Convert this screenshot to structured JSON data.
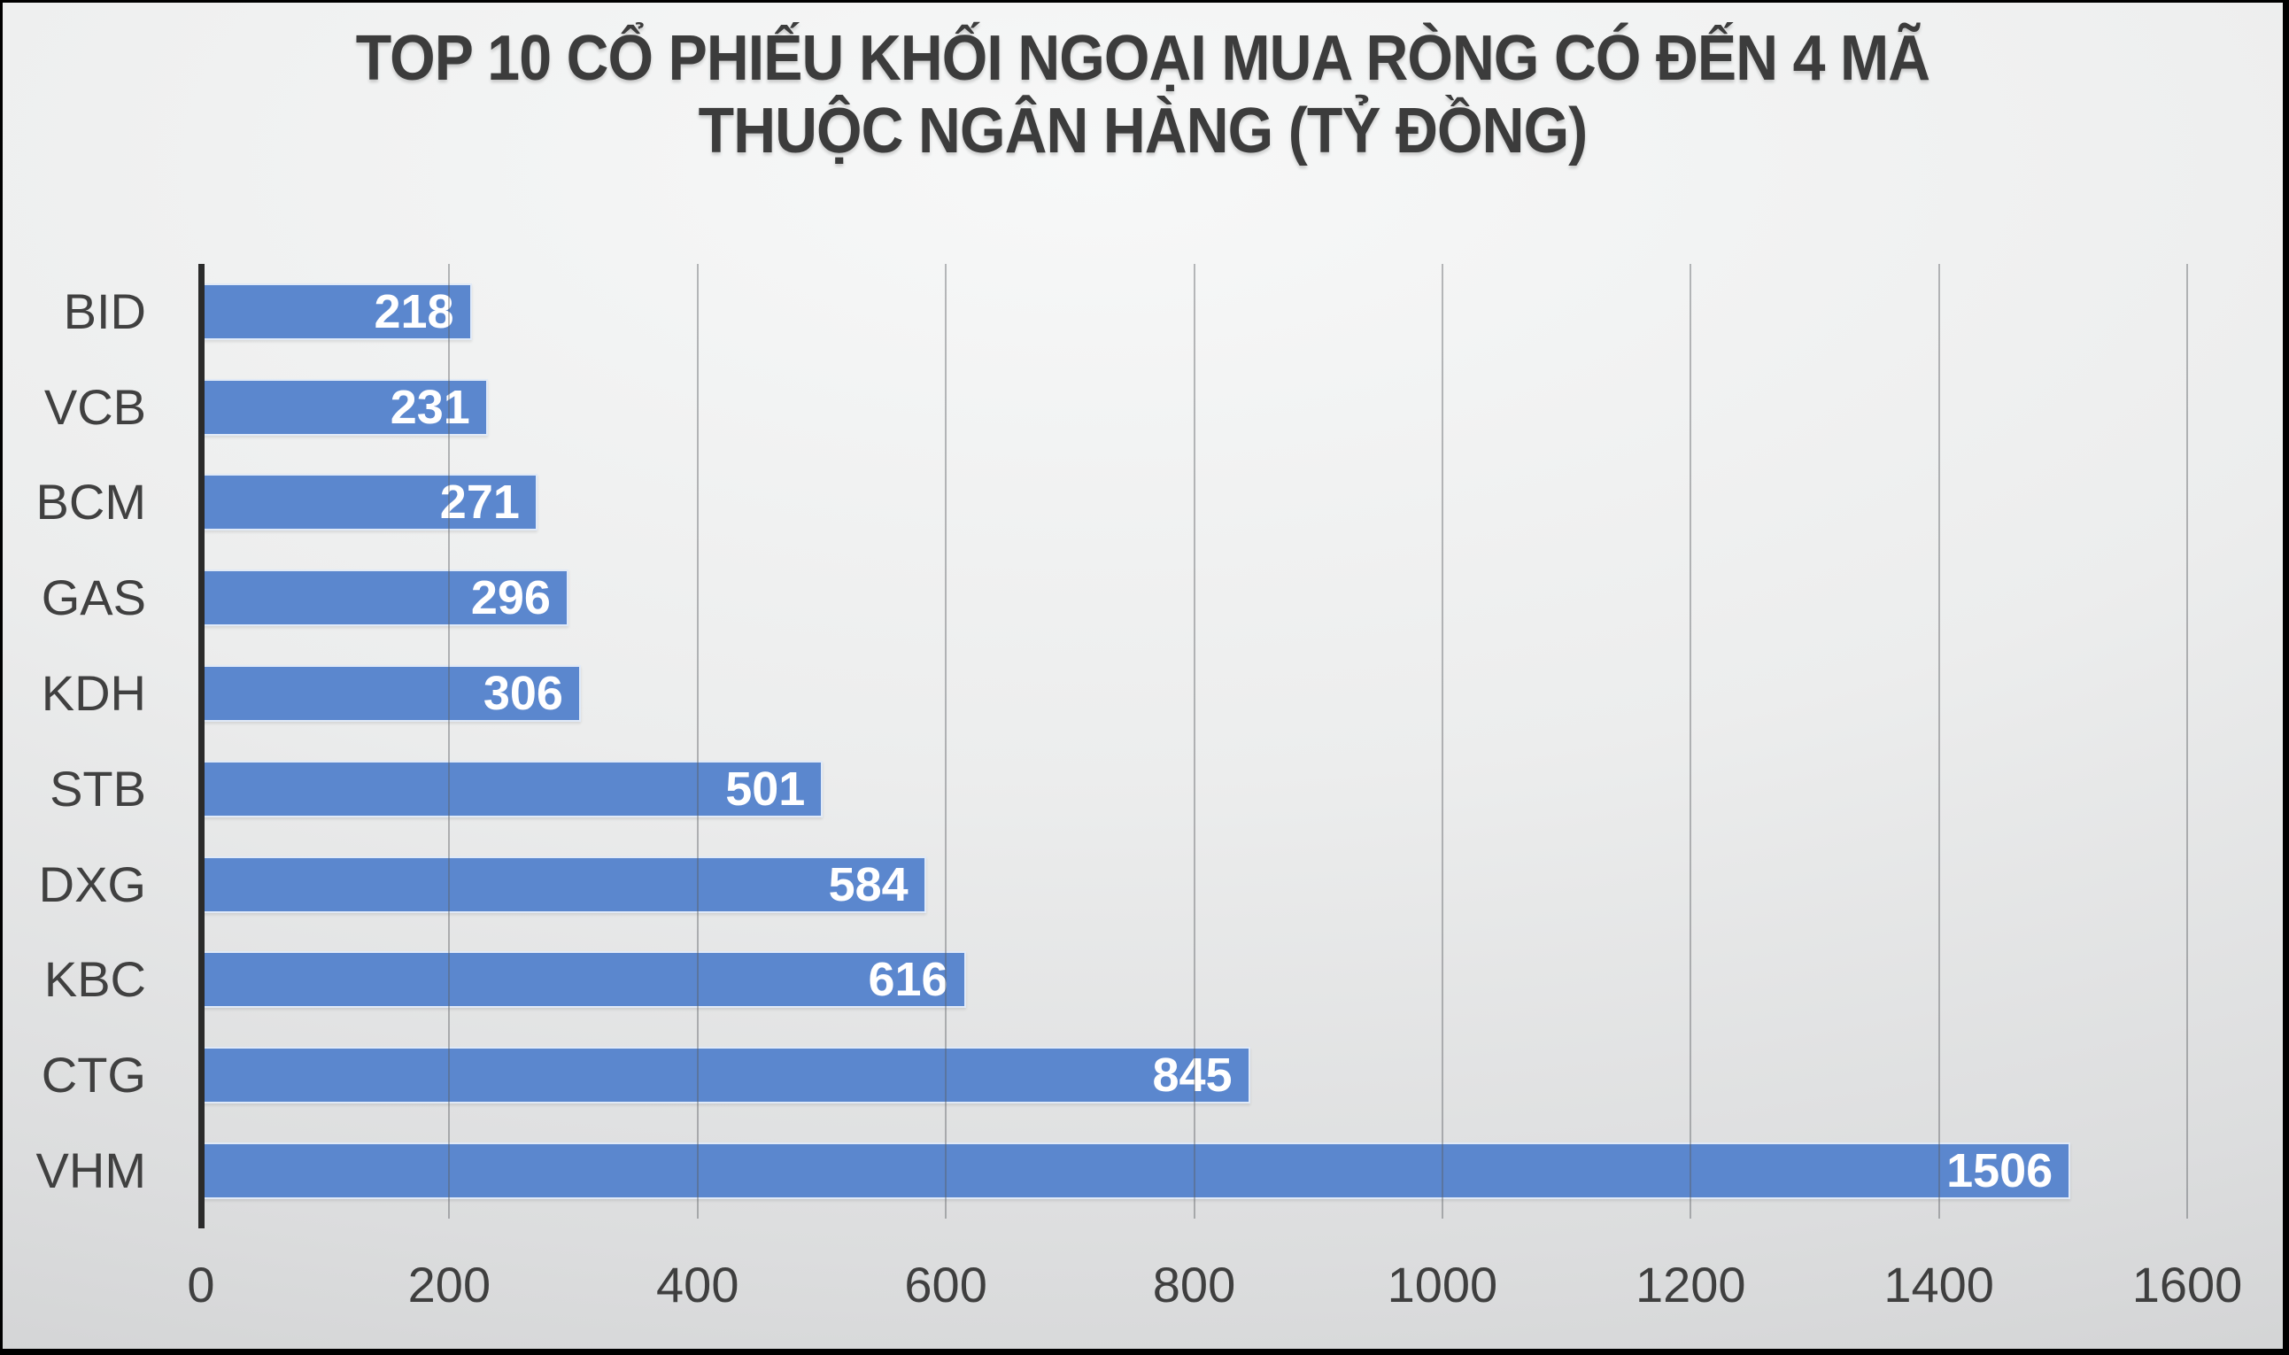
{
  "title": {
    "line1": "TOP 10 CỔ PHIẾU KHỐI NGOẠI MUA RÒNG CÓ ĐẾN 4 MÃ",
    "line2": "THUỘC NGÂN HÀNG (TỶ ĐỒNG)"
  },
  "chart_data": {
    "type": "bar",
    "orientation": "horizontal",
    "title": "TOP 10 CỔ PHIẾU KHỐI NGOẠI MUA RÒNG CÓ ĐẾN 4 MÃ THUỘC NGÂN HÀNG (TỶ ĐỒNG)",
    "categories": [
      "BID",
      "VCB",
      "BCM",
      "GAS",
      "KDH",
      "STB",
      "DXG",
      "KBC",
      "CTG",
      "VHM"
    ],
    "values": [
      218,
      231,
      271,
      296,
      306,
      501,
      584,
      616,
      845,
      1506
    ],
    "xlabel": "",
    "ylabel": "",
    "xlim": [
      0,
      1600
    ],
    "x_ticks": [
      0,
      200,
      400,
      600,
      800,
      1000,
      1200,
      1400,
      1600
    ],
    "grid": true,
    "legend": "none",
    "value_label_position": "inside-end",
    "bar_color": "#5B87CE",
    "bar_border_color": "#F0F5FC",
    "value_label_color": "#FFFFFF",
    "axis_line_color": "#2B2B2B",
    "gridline_color": "#9EA2A6",
    "text_color": "#404040",
    "background_style": "gray-gradient-slide"
  }
}
